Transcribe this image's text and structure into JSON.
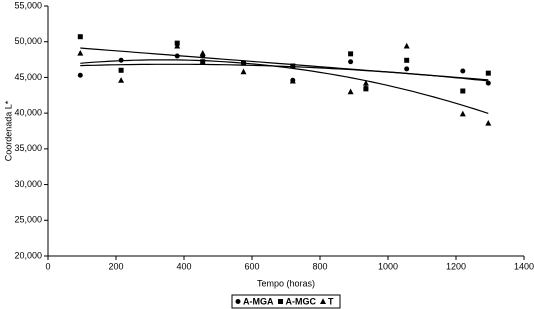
{
  "chart_data": {
    "type": "scatter",
    "x_label": "Tempo (horas)",
    "y_label": "Coordenada L*",
    "x": [
      95,
      215,
      380,
      455,
      575,
      720,
      890,
      935,
      1055,
      1220,
      1295
    ],
    "series": [
      {
        "name": "A-MGA",
        "color": "#000000",
        "marker": "circle",
        "trendline": "poly2",
        "values": [
          45300,
          47400,
          48000,
          48000,
          47000,
          44600,
          47200,
          43500,
          46200,
          45900,
          44200
        ]
      },
      {
        "name": "A-MGC",
        "color": "#000000",
        "marker": "square",
        "trendline": "linear",
        "values": [
          50700,
          46000,
          49800,
          47200,
          47000,
          46600,
          48300,
          43400,
          47400,
          43100,
          45600
        ]
      },
      {
        "name": "T",
        "color": "#000000",
        "marker": "triangle",
        "trendline": "poly2",
        "values": [
          48400,
          44600,
          49400,
          48400,
          45800,
          44500,
          43000,
          44200,
          49400,
          39900,
          38600
        ]
      }
    ],
    "xlim": [
      0,
      1400
    ],
    "xticks": [
      0,
      200,
      400,
      600,
      800,
      1000,
      1200,
      1400
    ],
    "ylim": [
      20000,
      55000
    ],
    "yticks": [
      {
        "value": 20000,
        "label": "20,000"
      },
      {
        "value": 25000,
        "label": "25,000"
      },
      {
        "value": 30000,
        "label": "30,000"
      },
      {
        "value": 35000,
        "label": "35,000"
      },
      {
        "value": 40000,
        "label": "40,000"
      },
      {
        "value": 45000,
        "label": "45,000"
      },
      {
        "value": 50000,
        "label": "50,000"
      },
      {
        "value": 55000,
        "label": "55,000"
      }
    ],
    "legend": "bottom"
  }
}
